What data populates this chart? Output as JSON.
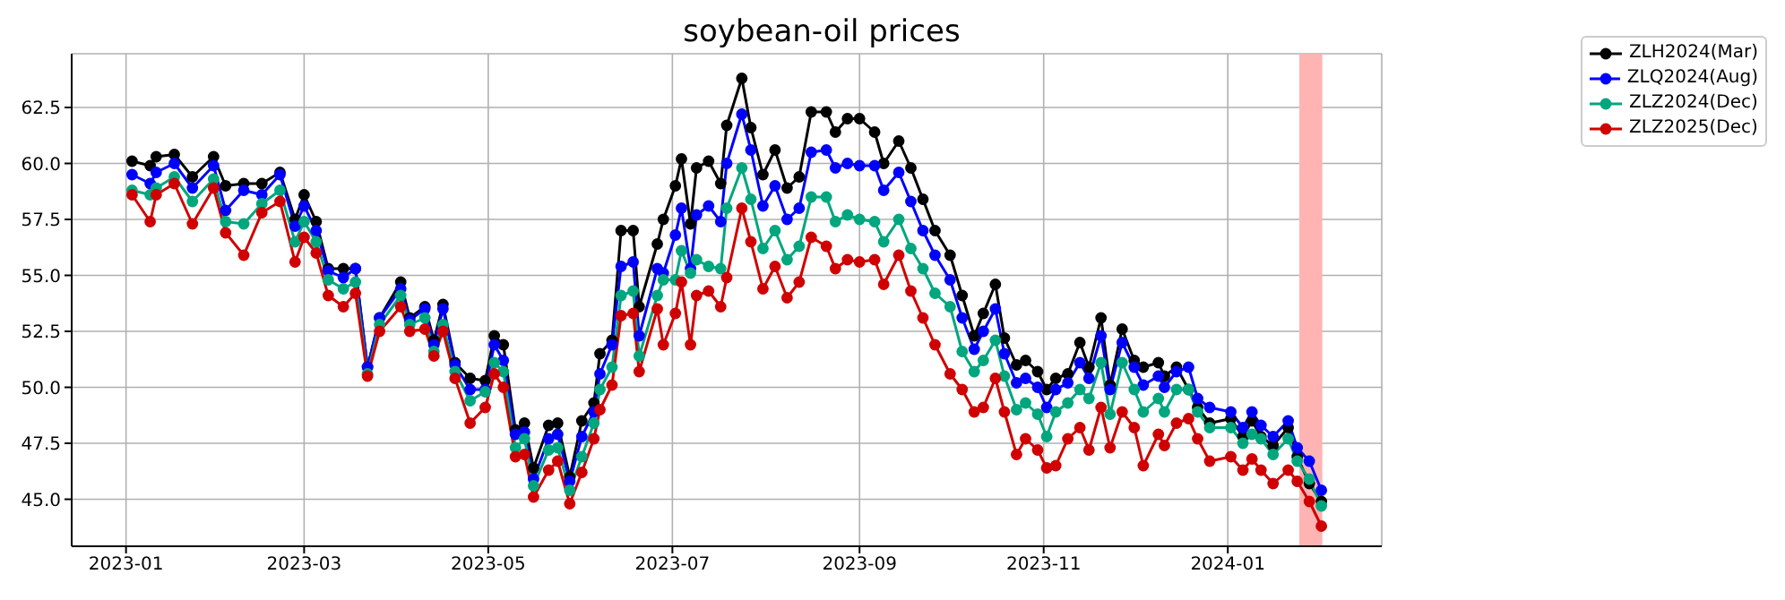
{
  "chart_data": {
    "type": "line",
    "title": "soybean-oil prices",
    "x": [
      "2023-01-03",
      "2023-01-09",
      "2023-01-11",
      "2023-01-17",
      "2023-01-23",
      "2023-01-30",
      "2023-02-03",
      "2023-02-09",
      "2023-02-15",
      "2023-02-21",
      "2023-02-26",
      "2023-03-01",
      "2023-03-05",
      "2023-03-09",
      "2023-03-14",
      "2023-03-18",
      "2023-03-22",
      "2023-03-26",
      "2023-04-02",
      "2023-04-05",
      "2023-04-10",
      "2023-04-13",
      "2023-04-16",
      "2023-04-20",
      "2023-04-25",
      "2023-04-30",
      "2023-05-03",
      "2023-05-06",
      "2023-05-10",
      "2023-05-13",
      "2023-05-16",
      "2023-05-21",
      "2023-05-24",
      "2023-05-28",
      "2023-06-01",
      "2023-06-05",
      "2023-06-07",
      "2023-06-11",
      "2023-06-14",
      "2023-06-18",
      "2023-06-20",
      "2023-06-26",
      "2023-06-28",
      "2023-07-02",
      "2023-07-04",
      "2023-07-07",
      "2023-07-09",
      "2023-07-13",
      "2023-07-17",
      "2023-07-19",
      "2023-07-24",
      "2023-07-27",
      "2023-07-31",
      "2023-08-04",
      "2023-08-08",
      "2023-08-12",
      "2023-08-16",
      "2023-08-21",
      "2023-08-24",
      "2023-08-28",
      "2023-09-01",
      "2023-09-06",
      "2023-09-09",
      "2023-09-14",
      "2023-09-18",
      "2023-09-22",
      "2023-09-26",
      "2023-10-01",
      "2023-10-05",
      "2023-10-09",
      "2023-10-12",
      "2023-10-16",
      "2023-10-19",
      "2023-10-23",
      "2023-10-26",
      "2023-10-30",
      "2023-11-02",
      "2023-11-05",
      "2023-11-09",
      "2023-11-13",
      "2023-11-16",
      "2023-11-20",
      "2023-11-23",
      "2023-11-27",
      "2023-12-01",
      "2023-12-04",
      "2023-12-09",
      "2023-12-11",
      "2023-12-15",
      "2023-12-19",
      "2023-12-22",
      "2023-12-26",
      "2024-01-02",
      "2024-01-06",
      "2024-01-09",
      "2024-01-12",
      "2024-01-16",
      "2024-01-21",
      "2024-01-24",
      "2024-01-28",
      "2024-02-01"
    ],
    "series": [
      {
        "name": "ZLH2024(Mar)",
        "color": "#000000",
        "values": [
          60.1,
          59.9,
          60.3,
          60.4,
          59.4,
          60.3,
          59.0,
          59.1,
          59.1,
          59.6,
          57.5,
          58.6,
          57.4,
          55.3,
          55.3,
          55.3,
          50.9,
          53.1,
          54.7,
          53.1,
          53.6,
          52.1,
          53.7,
          51.1,
          50.4,
          50.3,
          52.3,
          51.9,
          48.1,
          48.4,
          46.4,
          48.3,
          48.4,
          46.0,
          48.5,
          49.3,
          51.5,
          52.1,
          57.0,
          57.0,
          53.6,
          56.4,
          57.5,
          59.0,
          60.2,
          57.3,
          59.8,
          60.1,
          59.1,
          61.7,
          63.8,
          61.6,
          59.5,
          60.6,
          58.9,
          59.4,
          62.3,
          62.3,
          61.4,
          62.0,
          62.0,
          61.4,
          60.0,
          61.0,
          59.8,
          58.4,
          57.0,
          55.9,
          54.1,
          52.3,
          53.3,
          54.6,
          52.2,
          51.0,
          51.2,
          50.7,
          49.9,
          50.4,
          50.6,
          52.0,
          50.9,
          53.1,
          50.1,
          52.6,
          51.2,
          50.9,
          51.1,
          50.5,
          50.9,
          49.9,
          49.1,
          48.4,
          48.6,
          47.8,
          48.5,
          47.8,
          47.4,
          48.2,
          46.9,
          45.7,
          44.9
        ]
      },
      {
        "name": "ZLQ2024(Aug)",
        "color": "#0000ff",
        "values": [
          59.5,
          59.1,
          59.6,
          60.0,
          58.9,
          59.9,
          57.9,
          58.8,
          58.6,
          59.5,
          57.2,
          58.1,
          57.0,
          55.2,
          54.9,
          55.3,
          50.9,
          53.1,
          54.4,
          53.0,
          53.5,
          51.9,
          53.5,
          51.0,
          49.9,
          49.9,
          51.9,
          51.2,
          47.9,
          48.0,
          45.9,
          47.7,
          47.9,
          45.8,
          47.8,
          48.9,
          50.6,
          51.9,
          55.4,
          55.6,
          52.3,
          55.3,
          55.1,
          56.8,
          58.0,
          55.3,
          57.7,
          58.1,
          57.4,
          60.0,
          62.2,
          60.6,
          58.1,
          59.0,
          57.5,
          58.0,
          60.5,
          60.6,
          59.8,
          60.0,
          59.9,
          59.9,
          58.8,
          59.6,
          58.3,
          57.0,
          55.9,
          54.8,
          53.1,
          51.7,
          52.5,
          53.5,
          51.5,
          50.2,
          50.4,
          50.0,
          49.1,
          49.9,
          50.2,
          51.1,
          50.4,
          52.3,
          49.9,
          52.0,
          50.9,
          50.1,
          50.5,
          50.0,
          50.7,
          50.9,
          49.5,
          49.1,
          48.9,
          48.2,
          48.9,
          48.3,
          47.8,
          48.5,
          47.3,
          46.7,
          45.4
        ]
      },
      {
        "name": "ZLZ2024(Dec)",
        "color": "#00a67e",
        "values": [
          58.8,
          58.6,
          58.9,
          59.4,
          58.3,
          59.3,
          57.4,
          57.3,
          58.2,
          58.8,
          56.5,
          57.4,
          56.5,
          54.8,
          54.4,
          54.7,
          50.6,
          52.8,
          54.1,
          52.8,
          53.1,
          51.6,
          52.8,
          50.7,
          49.4,
          49.8,
          51.1,
          50.7,
          47.3,
          47.7,
          45.6,
          47.2,
          47.3,
          45.4,
          46.9,
          48.4,
          49.9,
          50.9,
          54.1,
          54.3,
          51.4,
          54.1,
          54.8,
          54.8,
          56.1,
          55.1,
          55.7,
          55.4,
          55.3,
          58.0,
          59.8,
          58.4,
          56.2,
          57.0,
          55.7,
          56.3,
          58.5,
          58.5,
          57.4,
          57.7,
          57.5,
          57.4,
          56.5,
          57.5,
          56.2,
          55.3,
          54.2,
          53.6,
          51.6,
          50.7,
          51.2,
          52.1,
          50.5,
          49.0,
          49.3,
          48.8,
          47.8,
          48.9,
          49.3,
          49.9,
          49.5,
          51.1,
          48.8,
          51.1,
          49.9,
          48.9,
          49.5,
          48.9,
          49.9,
          49.9,
          48.9,
          48.2,
          48.2,
          47.5,
          47.9,
          47.7,
          47.0,
          47.7,
          46.7,
          45.9,
          44.7
        ]
      },
      {
        "name": "ZLZ2025(Dec)",
        "color": "#d00000",
        "values": [
          58.6,
          57.4,
          58.6,
          59.1,
          57.3,
          58.9,
          56.9,
          55.9,
          57.8,
          58.3,
          55.6,
          56.7,
          56.0,
          54.1,
          53.6,
          54.2,
          50.5,
          52.5,
          53.6,
          52.5,
          52.6,
          51.4,
          52.5,
          50.4,
          48.4,
          49.1,
          50.6,
          50.0,
          46.9,
          47.0,
          45.1,
          46.3,
          46.7,
          44.8,
          46.2,
          47.7,
          49.0,
          50.1,
          53.2,
          53.3,
          50.7,
          53.5,
          51.9,
          53.3,
          54.7,
          51.9,
          54.1,
          54.3,
          53.6,
          54.9,
          58.0,
          56.5,
          54.4,
          55.4,
          54.0,
          54.7,
          56.7,
          56.3,
          55.3,
          55.7,
          55.6,
          55.7,
          54.6,
          55.9,
          54.3,
          53.1,
          51.9,
          50.6,
          49.9,
          48.9,
          49.1,
          50.4,
          48.9,
          47.0,
          47.7,
          47.2,
          46.4,
          46.5,
          47.7,
          48.2,
          47.2,
          49.1,
          47.3,
          48.9,
          48.2,
          46.5,
          47.9,
          47.4,
          48.4,
          48.6,
          47.7,
          46.7,
          46.9,
          46.3,
          46.8,
          46.3,
          45.7,
          46.3,
          45.8,
          44.9,
          43.8
        ]
      }
    ],
    "xlim": [
      "2022-12-14",
      "2024-02-21"
    ],
    "xticks": [
      "2023-01",
      "2023-03",
      "2023-05",
      "2023-07",
      "2023-09",
      "2023-11",
      "2024-01"
    ],
    "ylim": [
      42.9,
      64.9
    ],
    "yticks": [
      {
        "value": 45,
        "label": "45.0"
      },
      {
        "value": 47.5,
        "label": "47.5"
      },
      {
        "value": 50,
        "label": "50.0"
      },
      {
        "value": 52.5,
        "label": "52.5"
      },
      {
        "value": 55,
        "label": "55.0"
      },
      {
        "value": 57.5,
        "label": "57.5"
      },
      {
        "value": 60,
        "label": "60.0"
      },
      {
        "value": 62.5,
        "label": "62.5"
      }
    ],
    "bands": [
      {
        "axis": "x",
        "from": "2024-01-25",
        "to": "2024-02-01",
        "color": "#ffb3b3"
      }
    ],
    "grid": true,
    "legend": "top right",
    "marker": "circle",
    "line_style": "solid"
  }
}
